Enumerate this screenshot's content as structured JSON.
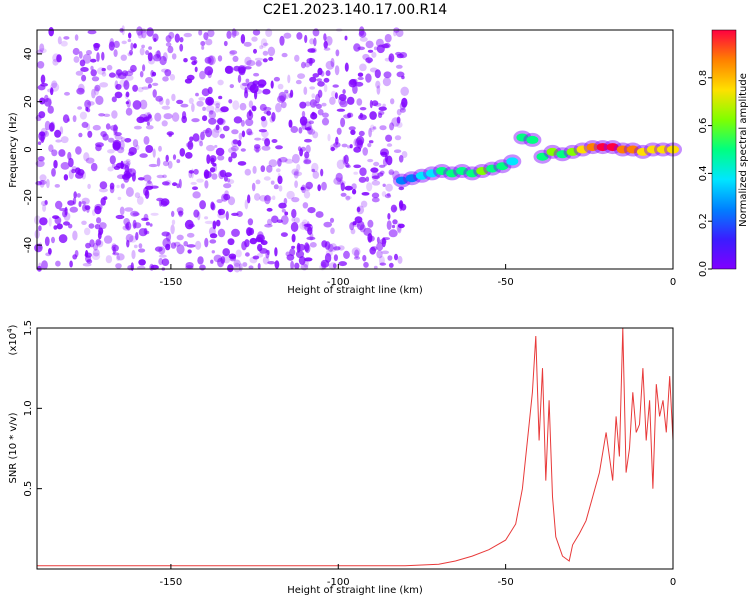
{
  "title": "C2E1.2023.140.17.00.R14",
  "colors": {
    "spectrum_ramp": [
      "#8000ff",
      "#3a1dff",
      "#0080ff",
      "#00e6ff",
      "#00ff80",
      "#80ff00",
      "#ffe000",
      "#ff8000",
      "#ff0040"
    ],
    "snr_line": "#e83a3a"
  },
  "chart_data": [
    {
      "type": "heatmap",
      "xlabel": "Height of straight line (km)",
      "ylabel": "Frequency (Hz)",
      "xlim": [
        -190,
        0
      ],
      "ylim": [
        -50,
        50
      ],
      "xticks": [
        -150,
        -100,
        -50,
        0
      ],
      "xtick_labels": [
        "-150",
        "-100",
        "-50",
        "0"
      ],
      "yticks": [
        -40,
        -20,
        0,
        20,
        40
      ],
      "ytick_labels": [
        "-40",
        "-20",
        "0",
        "20",
        "40"
      ],
      "colorbar": {
        "label": "Normalized spectral amplitude",
        "range": [
          0,
          1
        ],
        "ticks": [
          0.0,
          0.2,
          0.4,
          0.6,
          0.8
        ],
        "tick_labels": [
          "0.0",
          "0.2",
          "0.4",
          "0.6",
          "0.8"
        ]
      },
      "noise_region": {
        "x_range": [
          -190,
          -80
        ],
        "y_range": [
          -50,
          50
        ],
        "level": 0.12
      },
      "signal_track": [
        [
          -81,
          -13,
          0.2
        ],
        [
          -78,
          -12,
          0.25
        ],
        [
          -75,
          -11,
          0.35
        ],
        [
          -72,
          -10,
          0.4
        ],
        [
          -69,
          -9,
          0.45
        ],
        [
          -66,
          -10,
          0.5
        ],
        [
          -63,
          -9,
          0.55
        ],
        [
          -60,
          -10,
          0.5
        ],
        [
          -57,
          -9,
          0.6
        ],
        [
          -54,
          -8,
          0.55
        ],
        [
          -51,
          -7,
          0.45
        ],
        [
          -48,
          -5,
          0.4
        ],
        [
          -45,
          5,
          0.45
        ],
        [
          -42,
          4,
          0.5
        ],
        [
          -39,
          -3,
          0.45
        ],
        [
          -36,
          -1,
          0.6
        ],
        [
          -33,
          -2,
          0.55
        ],
        [
          -30,
          -1,
          0.6
        ],
        [
          -27,
          0,
          0.7
        ],
        [
          -24,
          1,
          0.85
        ],
        [
          -21,
          1,
          0.95
        ],
        [
          -18,
          1,
          1.0
        ],
        [
          -15,
          0,
          0.9
        ],
        [
          -12,
          0,
          0.85
        ],
        [
          -9,
          -1,
          0.8
        ],
        [
          -6,
          0,
          0.8
        ],
        [
          -3,
          0,
          0.75
        ],
        [
          0,
          0,
          0.7
        ]
      ]
    },
    {
      "type": "line",
      "xlabel": "Height of straight line (km)",
      "ylabel": "SNR (10 * v/v)",
      "y_multiplier": "(x10",
      "y_multiplier_exp": "4",
      "y_multiplier_close": ")",
      "xlim": [
        -190,
        0
      ],
      "ylim": [
        0,
        1.5
      ],
      "xticks": [
        -150,
        -100,
        -50,
        0
      ],
      "xtick_labels": [
        "-150",
        "-100",
        "-50",
        "0"
      ],
      "yticks": [
        0.5,
        1.0,
        1.5
      ],
      "ytick_labels": [
        "0.5",
        "1.0",
        "1.5"
      ],
      "series": [
        {
          "x": [
            -190,
            -170,
            -150,
            -130,
            -110,
            -90,
            -80,
            -70,
            -65,
            -60,
            -55,
            -50,
            -47,
            -45,
            -43,
            -42,
            -41,
            -40,
            -39,
            -38,
            -37,
            -36,
            -35,
            -33,
            -31,
            -30,
            -28,
            -26,
            -24,
            -22,
            -20,
            -18,
            -17,
            -16,
            -15,
            -14,
            -13,
            -12,
            -11,
            -10,
            -9,
            -8,
            -7,
            -6,
            -5,
            -4,
            -3,
            -2,
            -1,
            0
          ],
          "y": [
            0.02,
            0.02,
            0.02,
            0.02,
            0.02,
            0.02,
            0.02,
            0.03,
            0.05,
            0.08,
            0.12,
            0.18,
            0.28,
            0.5,
            0.9,
            1.1,
            1.45,
            0.8,
            1.25,
            0.55,
            1.05,
            0.45,
            0.2,
            0.08,
            0.05,
            0.15,
            0.22,
            0.3,
            0.45,
            0.6,
            0.85,
            0.55,
            0.95,
            0.7,
            1.5,
            0.6,
            0.75,
            1.1,
            0.85,
            0.9,
            1.25,
            0.8,
            1.05,
            0.5,
            1.15,
            0.95,
            1.05,
            0.85,
            1.2,
            0.8
          ]
        }
      ]
    }
  ]
}
